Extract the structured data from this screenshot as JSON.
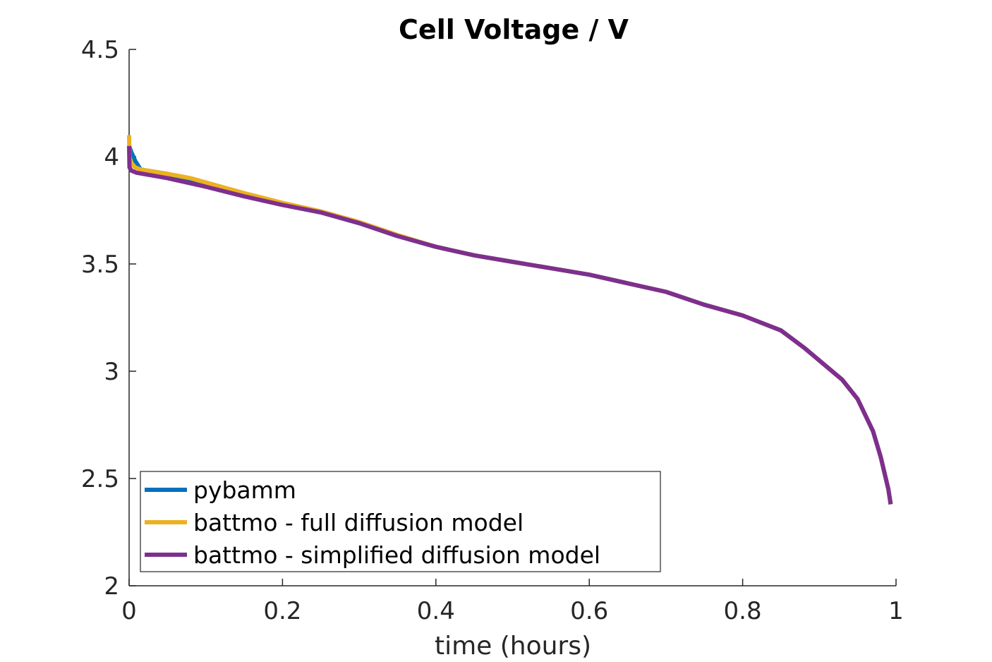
{
  "chart_data": {
    "type": "line",
    "title": "Cell Voltage / V",
    "xlabel": "time (hours)",
    "ylabel": "",
    "xlim": [
      0,
      1
    ],
    "ylim": [
      2,
      4.5
    ],
    "xticks": [
      0,
      0.2,
      0.4,
      0.6,
      0.8,
      1
    ],
    "xtick_labels": [
      "0",
      "0.2",
      "0.4",
      "0.6",
      "0.8",
      "1"
    ],
    "yticks": [
      2,
      2.5,
      3,
      3.5,
      4,
      4.5
    ],
    "ytick_labels": [
      "2",
      "2.5",
      "3",
      "3.5",
      "4",
      "4.5"
    ],
    "grid": false,
    "legend_position": "bottom-left",
    "series": [
      {
        "name": "pybamm",
        "color": "#0072BD",
        "x": [
          0,
          0.003,
          0.008,
          0.015,
          0.05,
          0.1,
          0.15,
          0.2,
          0.25,
          0.3,
          0.35,
          0.4,
          0.45,
          0.5,
          0.55,
          0.6,
          0.65,
          0.7,
          0.75,
          0.8,
          0.85,
          0.88,
          0.9,
          0.93,
          0.95,
          0.97,
          0.98,
          0.99,
          0.993
        ],
        "y": [
          4.05,
          4.02,
          3.98,
          3.94,
          3.92,
          3.87,
          3.82,
          3.78,
          3.74,
          3.69,
          3.63,
          3.58,
          3.54,
          3.51,
          3.48,
          3.45,
          3.41,
          3.37,
          3.31,
          3.26,
          3.19,
          3.11,
          3.05,
          2.96,
          2.87,
          2.72,
          2.6,
          2.45,
          2.38
        ]
      },
      {
        "name": "battmo - full diffusion model",
        "color": "#EDB120",
        "x": [
          0,
          0.0005,
          0.003,
          0.008,
          0.015,
          0.05,
          0.08,
          0.1,
          0.15,
          0.2,
          0.25,
          0.3,
          0.35,
          0.4,
          0.45,
          0.5,
          0.55,
          0.6,
          0.65,
          0.7,
          0.75,
          0.8,
          0.85,
          0.88,
          0.9,
          0.93,
          0.95,
          0.97,
          0.98,
          0.99,
          0.993
        ],
        "y": [
          4.1,
          4.0,
          3.97,
          3.95,
          3.94,
          3.92,
          3.9,
          3.88,
          3.83,
          3.785,
          3.745,
          3.695,
          3.635,
          3.58,
          3.54,
          3.51,
          3.48,
          3.45,
          3.41,
          3.37,
          3.31,
          3.26,
          3.19,
          3.11,
          3.05,
          2.96,
          2.87,
          2.72,
          2.6,
          2.45,
          2.38
        ]
      },
      {
        "name": "battmo - simplified diffusion model",
        "color": "#7E2F8E",
        "x": [
          0,
          0.0005,
          0.003,
          0.01,
          0.05,
          0.1,
          0.15,
          0.2,
          0.25,
          0.3,
          0.35,
          0.4,
          0.45,
          0.5,
          0.55,
          0.6,
          0.65,
          0.7,
          0.75,
          0.8,
          0.85,
          0.88,
          0.9,
          0.93,
          0.95,
          0.97,
          0.98,
          0.99,
          0.993
        ],
        "y": [
          4.05,
          3.95,
          3.935,
          3.925,
          3.9,
          3.86,
          3.815,
          3.775,
          3.74,
          3.69,
          3.63,
          3.58,
          3.54,
          3.51,
          3.48,
          3.45,
          3.41,
          3.37,
          3.31,
          3.26,
          3.19,
          3.11,
          3.05,
          2.96,
          2.87,
          2.72,
          2.6,
          2.45,
          2.38
        ]
      }
    ]
  }
}
